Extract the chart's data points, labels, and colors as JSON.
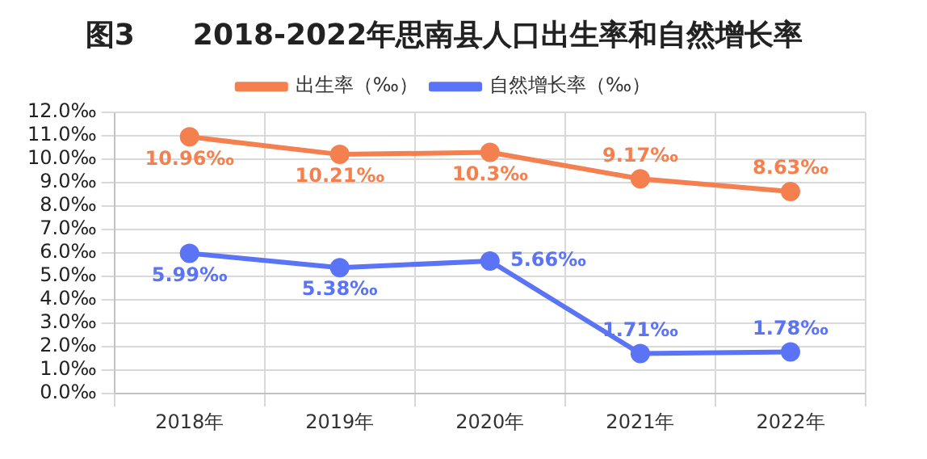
{
  "chart_data": {
    "type": "line",
    "title": "图3　　2018-2022年思南县人口出生率和自然增长率",
    "categories": [
      "2018年",
      "2019年",
      "2020年",
      "2021年",
      "2022年"
    ],
    "series": [
      {
        "name": "出生率（‰）",
        "color": "#f4804f",
        "values": [
          10.96,
          10.21,
          10.3,
          9.17,
          8.63
        ],
        "value_labels": [
          "10.96‰",
          "10.21‰",
          "10.3‰",
          "9.17‰",
          "8.63‰"
        ]
      },
      {
        "name": "自然增长率（‰）",
        "color": "#5b73f5",
        "values": [
          5.99,
          5.38,
          5.66,
          1.71,
          1.78
        ],
        "value_labels": [
          "5.99‰",
          "5.38‰",
          "5.66‰",
          "1.71‰",
          "1.78‰"
        ]
      }
    ],
    "ylim": [
      0,
      12
    ],
    "yticks": [
      {
        "value": 0,
        "label": "0.0‰"
      },
      {
        "value": 1,
        "label": "1.0‰"
      },
      {
        "value": 2,
        "label": "2.0‰"
      },
      {
        "value": 3,
        "label": "3.0‰"
      },
      {
        "value": 4,
        "label": "4.0‰"
      },
      {
        "value": 5,
        "label": "5.0‰"
      },
      {
        "value": 6,
        "label": "6.0‰"
      },
      {
        "value": 7,
        "label": "7.0‰"
      },
      {
        "value": 8,
        "label": "8.0‰"
      },
      {
        "value": 9,
        "label": "9.0‰"
      },
      {
        "value": 10,
        "label": "10.0‰"
      },
      {
        "value": 11,
        "label": "11.0‰"
      },
      {
        "value": 12,
        "label": "12.0‰"
      }
    ],
    "grid": true,
    "legend": "top",
    "marker": "circle",
    "line_style": "solid"
  }
}
